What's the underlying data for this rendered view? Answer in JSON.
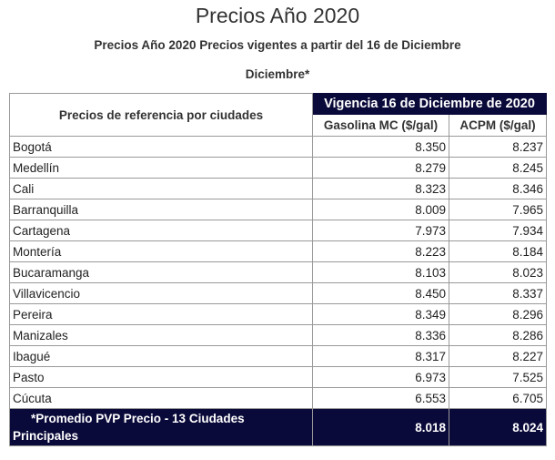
{
  "page": {
    "title": "Precios Año 2020",
    "subtitle": "Precios Año 2020 Precios vigentes a partir del 16 de Diciembre",
    "subtitle2": "Diciembre*"
  },
  "table": {
    "city_header": "Precios de referencia por ciudades",
    "vigencia_header": "Vigencia 16 de Diciembre de 2020",
    "columns": [
      "Gasolina MC ($/gal)",
      "ACPM ($/gal)"
    ],
    "rows": [
      {
        "city": "Bogotá",
        "gasolina": "8.350",
        "acpm": "8.237"
      },
      {
        "city": "Medellín",
        "gasolina": "8.279",
        "acpm": "8.245"
      },
      {
        "city": "Cali",
        "gasolina": "8.323",
        "acpm": "8.346"
      },
      {
        "city": "Barranquilla",
        "gasolina": "8.009",
        "acpm": "7.965"
      },
      {
        "city": "Cartagena",
        "gasolina": "7.973",
        "acpm": "7.934"
      },
      {
        "city": "Montería",
        "gasolina": "8.223",
        "acpm": "8.184"
      },
      {
        "city": "Bucaramanga",
        "gasolina": "8.103",
        "acpm": "8.023"
      },
      {
        "city": "Villavicencio",
        "gasolina": "8.450",
        "acpm": "8.337"
      },
      {
        "city": "Pereira",
        "gasolina": "8.349",
        "acpm": "8.296"
      },
      {
        "city": "Manizales",
        "gasolina": "8.336",
        "acpm": "8.286"
      },
      {
        "city": "Ibagué",
        "gasolina": "8.317",
        "acpm": "8.227"
      },
      {
        "city": "Pasto",
        "gasolina": "6.973",
        "acpm": "7.525"
      },
      {
        "city": "Cúcuta",
        "gasolina": "6.553",
        "acpm": "6.705"
      }
    ],
    "footer": {
      "label_line1": "*Promedio PVP Precio - 13 Ciudades",
      "label_line2": "Principales",
      "gasolina": "8.018",
      "acpm": "8.024"
    }
  },
  "colors": {
    "header_bg": "#0a0a3a",
    "border": "#999999"
  }
}
